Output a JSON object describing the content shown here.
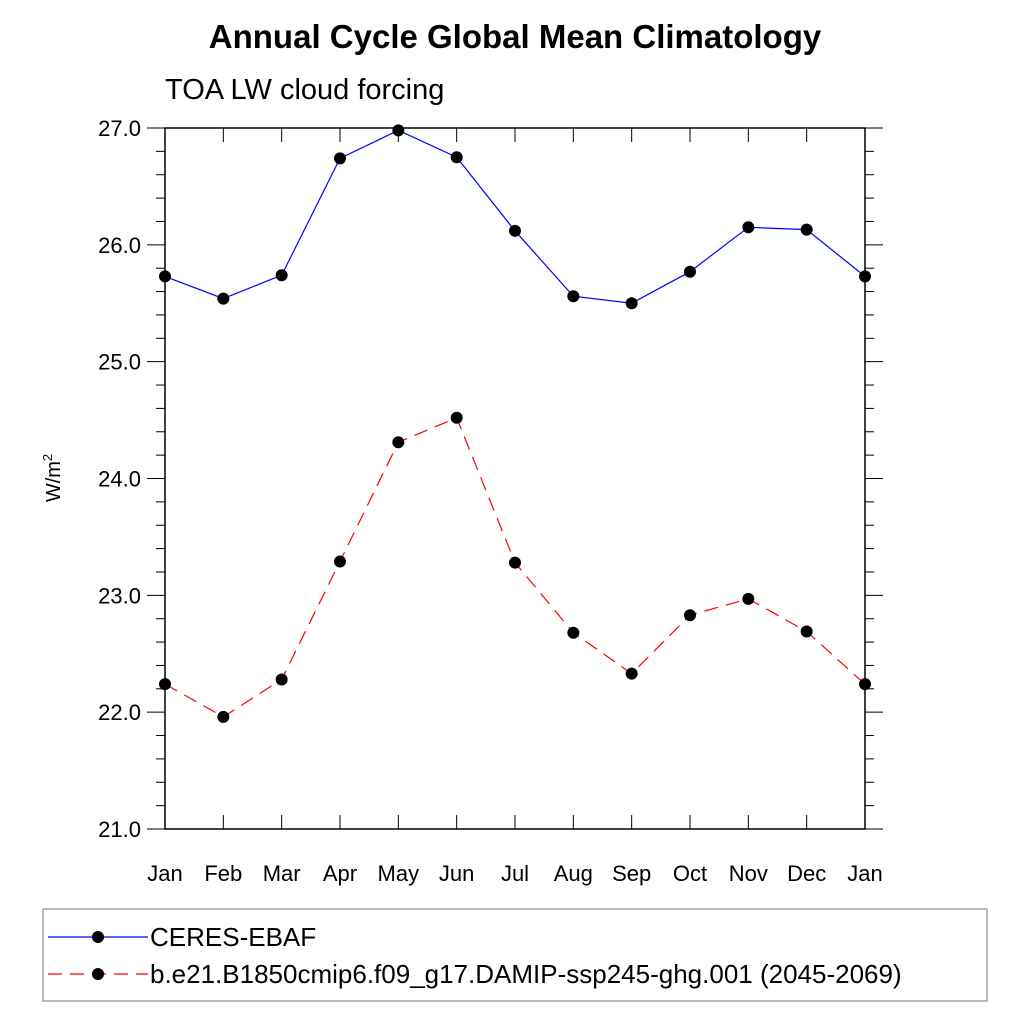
{
  "chart_data": {
    "type": "line",
    "title": "Annual Cycle Global Mean Climatology",
    "subtitle": "TOA LW cloud forcing",
    "ylabel": "W/m",
    "ylabel_superscript": "2",
    "xlabel": "",
    "categories": [
      "Jan",
      "Feb",
      "Mar",
      "Apr",
      "May",
      "Jun",
      "Jul",
      "Aug",
      "Sep",
      "Oct",
      "Nov",
      "Dec",
      "Jan"
    ],
    "ylim": [
      21.0,
      27.0
    ],
    "yticks": [
      "21.0",
      "22.0",
      "23.0",
      "24.0",
      "25.0",
      "26.0",
      "27.0"
    ],
    "grid": false,
    "legend_position": "bottom",
    "series": [
      {
        "name": "CERES-EBAF",
        "color": "#0000ff",
        "line_style": "solid",
        "marker": "filled-circle",
        "values": [
          25.73,
          25.54,
          25.74,
          26.74,
          26.98,
          26.75,
          26.12,
          25.56,
          25.5,
          25.77,
          26.15,
          26.13,
          25.73
        ]
      },
      {
        "name": "b.e21.B1850cmip6.f09_g17.DAMIP-ssp245-ghg.001 (2045-2069)",
        "color": "#ff0000",
        "line_style": "dashed",
        "marker": "filled-circle",
        "values": [
          22.24,
          21.96,
          22.28,
          23.29,
          24.31,
          24.52,
          23.28,
          22.68,
          22.33,
          22.83,
          22.97,
          22.69,
          22.24
        ]
      }
    ]
  }
}
